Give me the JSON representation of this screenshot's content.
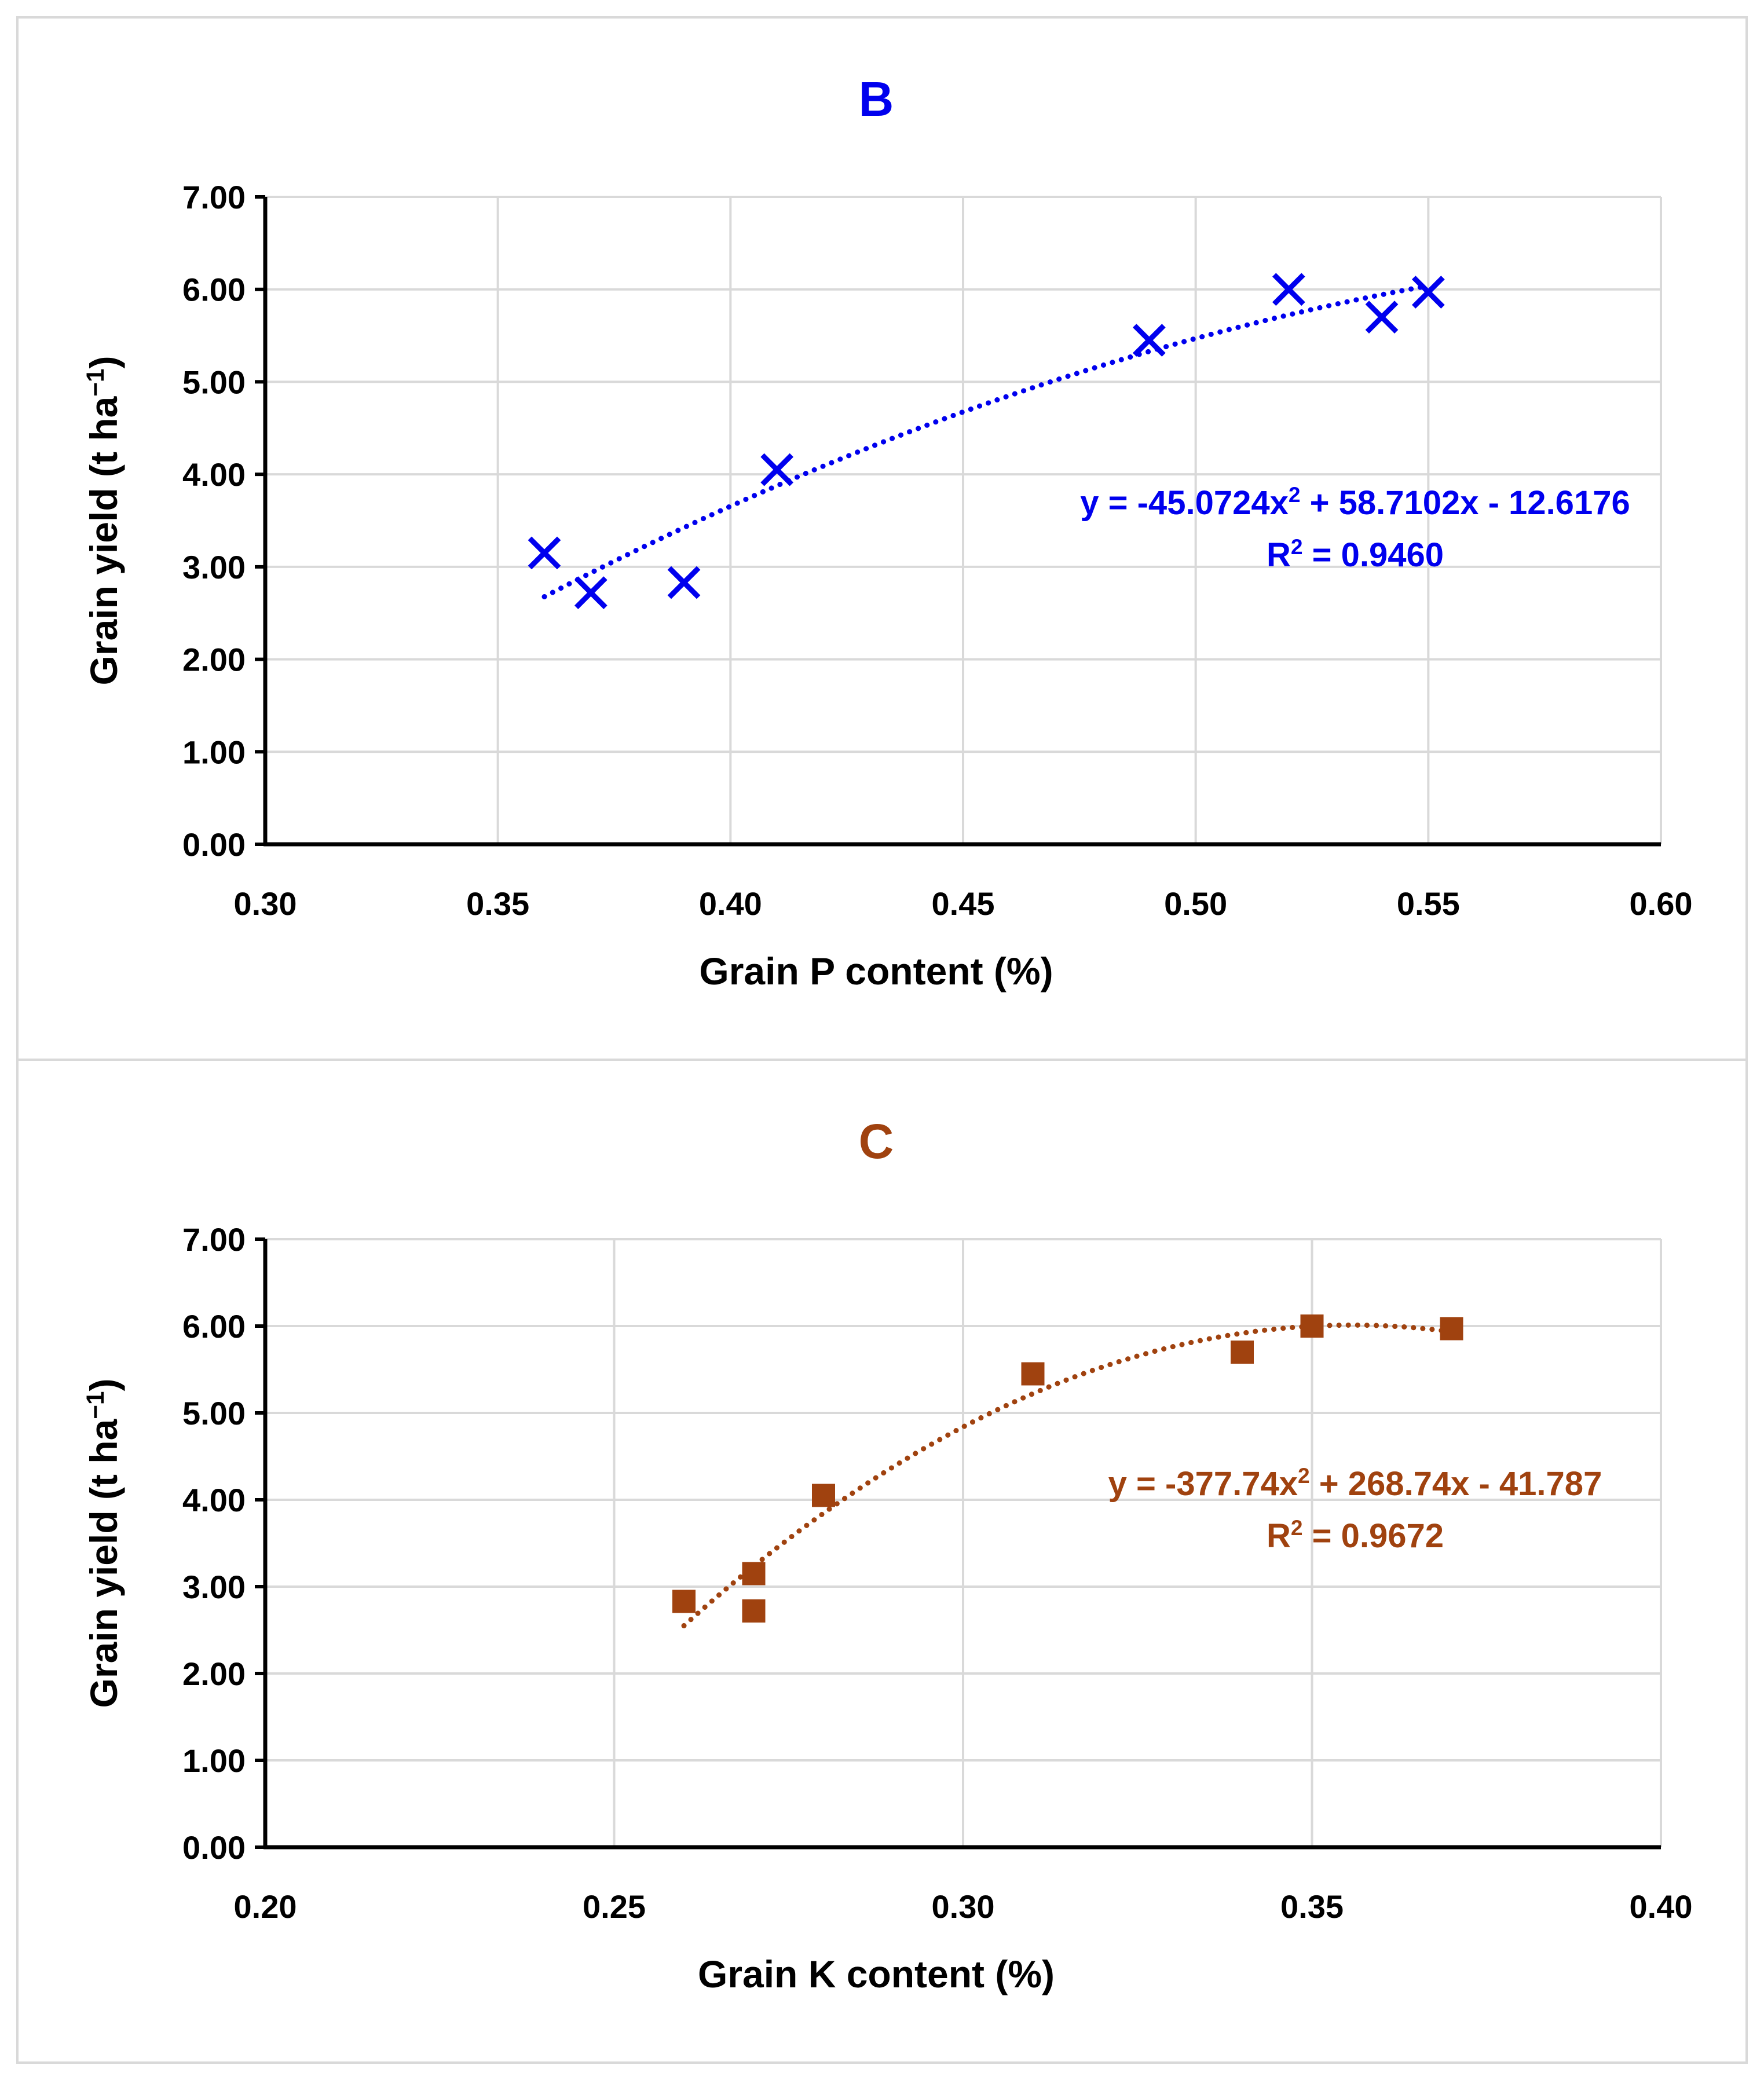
{
  "colors": {
    "panel_b": "#0000ee",
    "panel_c": "#a0420f",
    "grid": "#d9d9d9",
    "axis": "#000000"
  },
  "chart_data": [
    {
      "type": "scatter",
      "title": "B",
      "xlabel": "Grain P content (%)",
      "ylabel": "Grain yield (t ha",
      "ylabel_sup": "−1",
      "ylabel_end": ")",
      "xlim": [
        0.3,
        0.6
      ],
      "ylim": [
        0.0,
        7.0
      ],
      "x_ticks": [
        "0.30",
        "0.35",
        "0.40",
        "0.45",
        "0.50",
        "0.55",
        "0.60"
      ],
      "y_ticks": [
        "0.00",
        "1.00",
        "2.00",
        "3.00",
        "4.00",
        "5.00",
        "6.00",
        "7.00"
      ],
      "marker": "x",
      "x": [
        0.36,
        0.37,
        0.39,
        0.41,
        0.49,
        0.52,
        0.54,
        0.55
      ],
      "y": [
        3.15,
        2.72,
        2.83,
        4.05,
        5.45,
        6.0,
        5.7,
        5.97
      ],
      "trendline": {
        "kind": "polynomial-2",
        "a": -45.0724,
        "b": 58.7102,
        "c": -12.6176,
        "x_range": [
          0.36,
          0.55
        ]
      },
      "equation": {
        "prefix": "y = -45.0724x",
        "sup": "2",
        "suffix": " + 58.7102x - 12.6176",
        "r2_prefix": "R",
        "r2_sup": "2",
        "r2_suffix": " = 0.9460"
      }
    },
    {
      "type": "scatter",
      "title": "C",
      "xlabel": "Grain K content (%)",
      "ylabel": "Grain yield (t ha",
      "ylabel_sup": "−1",
      "ylabel_end": ")",
      "xlim": [
        0.2,
        0.4
      ],
      "ylim": [
        0.0,
        7.0
      ],
      "x_ticks": [
        "0.20",
        "0.25",
        "0.30",
        "0.35",
        "0.40"
      ],
      "y_ticks": [
        "0.00",
        "1.00",
        "2.00",
        "3.00",
        "4.00",
        "5.00",
        "6.00",
        "7.00"
      ],
      "marker": "square",
      "x": [
        0.26,
        0.27,
        0.27,
        0.28,
        0.31,
        0.34,
        0.35,
        0.37
      ],
      "y": [
        2.83,
        3.15,
        2.72,
        4.05,
        5.45,
        5.7,
        6.0,
        5.97
      ],
      "trendline": {
        "kind": "polynomial-2",
        "a": -377.74,
        "b": 268.74,
        "c": -41.787,
        "x_range": [
          0.26,
          0.37
        ]
      },
      "equation": {
        "prefix": "y = -377.74x",
        "sup": "2",
        "suffix": " + 268.74x - 41.787",
        "r2_prefix": "R",
        "r2_sup": "2",
        "r2_suffix": " = 0.9672"
      }
    }
  ]
}
